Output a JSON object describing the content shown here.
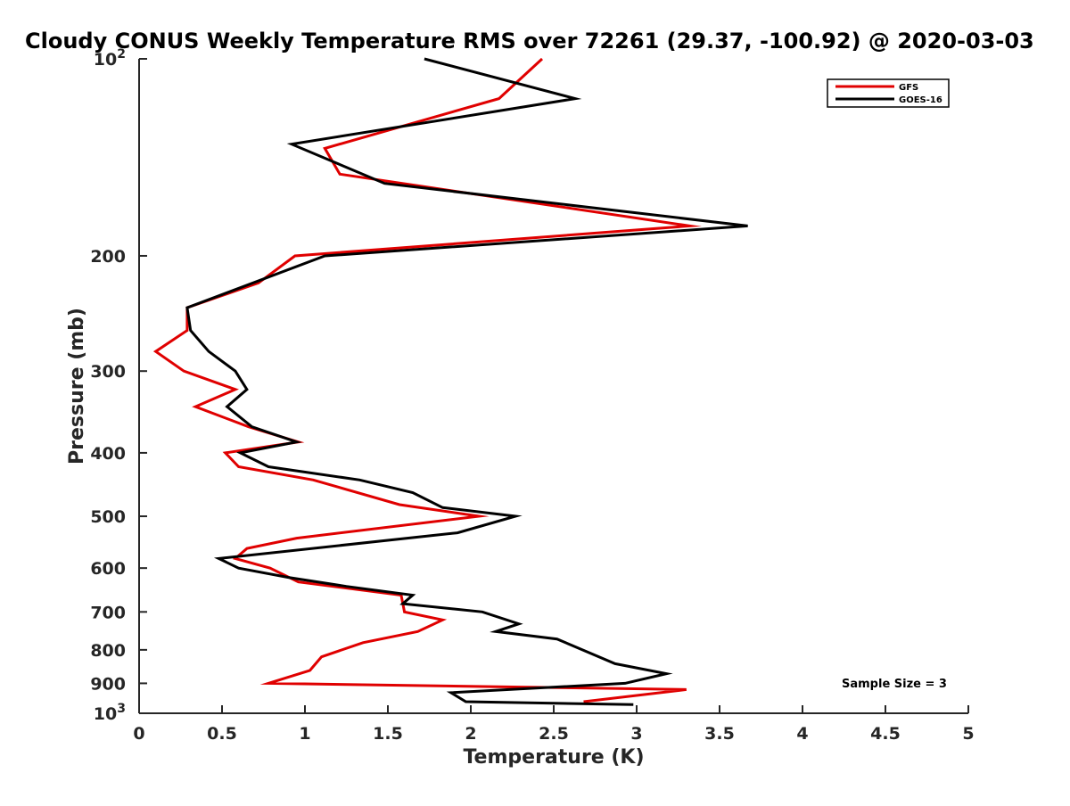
{
  "chart_data": {
    "type": "line",
    "title": "Cloudy CONUS Weekly Temperature RMS over 72261 (29.37, -100.92) @ 2020-03-03",
    "xlabel": "Temperature (K)",
    "ylabel": "Pressure (mb)",
    "xlim": [
      0,
      5
    ],
    "ylim": [
      100,
      1000
    ],
    "y_scale": "log",
    "y_reversed": true,
    "x_ticks": [
      0,
      0.5,
      1,
      1.5,
      2,
      2.5,
      3,
      3.5,
      4,
      4.5,
      5
    ],
    "x_tick_labels": [
      "0",
      "0.5",
      "1",
      "1.5",
      "2",
      "2.5",
      "3",
      "3.5",
      "4",
      "4.5",
      "5"
    ],
    "y_ticks": [
      100,
      200,
      300,
      400,
      500,
      600,
      700,
      800,
      900,
      1000
    ],
    "y_tick_labels": [
      {
        "base": "10",
        "exp": "2"
      },
      {
        "base": "200",
        "exp": ""
      },
      {
        "base": "300",
        "exp": ""
      },
      {
        "base": "400",
        "exp": ""
      },
      {
        "base": "500",
        "exp": ""
      },
      {
        "base": "600",
        "exp": ""
      },
      {
        "base": "700",
        "exp": ""
      },
      {
        "base": "800",
        "exp": ""
      },
      {
        "base": "900",
        "exp": ""
      },
      {
        "base": "10",
        "exp": "3"
      }
    ],
    "legend_position": "top-right",
    "annotation": "Sample Size = 3",
    "series": [
      {
        "name": "GFS",
        "color": "#e00000",
        "points": [
          [
            2.43,
            100
          ],
          [
            2.17,
            115
          ],
          [
            1.12,
            137
          ],
          [
            1.21,
            150
          ],
          [
            3.32,
            180
          ],
          [
            0.94,
            200
          ],
          [
            0.72,
            220
          ],
          [
            0.29,
            240
          ],
          [
            0.29,
            260
          ],
          [
            0.1,
            280
          ],
          [
            0.27,
            300
          ],
          [
            0.58,
            320
          ],
          [
            0.34,
            340
          ],
          [
            0.66,
            365
          ],
          [
            0.96,
            385
          ],
          [
            0.52,
            400
          ],
          [
            0.6,
            420
          ],
          [
            1.05,
            440
          ],
          [
            1.57,
            480
          ],
          [
            2.05,
            500
          ],
          [
            0.95,
            540
          ],
          [
            0.65,
            560
          ],
          [
            0.58,
            580
          ],
          [
            0.79,
            600
          ],
          [
            0.96,
            630
          ],
          [
            1.58,
            660
          ],
          [
            1.6,
            700
          ],
          [
            1.83,
            720
          ],
          [
            1.68,
            750
          ],
          [
            1.35,
            780
          ],
          [
            1.1,
            820
          ],
          [
            1.03,
            860
          ],
          [
            0.78,
            900
          ],
          [
            3.3,
            920
          ],
          [
            2.68,
            960
          ]
        ]
      },
      {
        "name": "GOES-16",
        "color": "#000000",
        "points": [
          [
            1.72,
            100
          ],
          [
            2.63,
            115
          ],
          [
            0.92,
            135
          ],
          [
            1.48,
            155
          ],
          [
            3.67,
            180
          ],
          [
            1.12,
            200
          ],
          [
            0.29,
            240
          ],
          [
            0.31,
            260
          ],
          [
            0.42,
            280
          ],
          [
            0.58,
            300
          ],
          [
            0.65,
            320
          ],
          [
            0.53,
            340
          ],
          [
            0.68,
            365
          ],
          [
            0.95,
            385
          ],
          [
            0.61,
            400
          ],
          [
            0.78,
            420
          ],
          [
            1.33,
            440
          ],
          [
            1.65,
            460
          ],
          [
            1.83,
            485
          ],
          [
            2.27,
            500
          ],
          [
            1.92,
            530
          ],
          [
            0.48,
            580
          ],
          [
            0.6,
            600
          ],
          [
            0.9,
            620
          ],
          [
            1.25,
            640
          ],
          [
            1.65,
            660
          ],
          [
            1.59,
            680
          ],
          [
            2.07,
            700
          ],
          [
            2.29,
            730
          ],
          [
            2.15,
            750
          ],
          [
            2.52,
            770
          ],
          [
            2.87,
            840
          ],
          [
            3.18,
            870
          ],
          [
            2.93,
            900
          ],
          [
            1.88,
            930
          ],
          [
            1.97,
            960
          ],
          [
            2.98,
            970
          ]
        ]
      }
    ]
  }
}
